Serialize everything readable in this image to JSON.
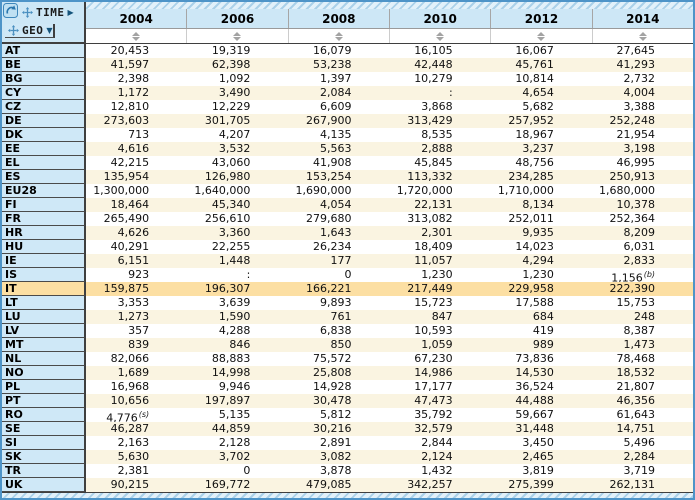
{
  "corner": {
    "time_label": "TIME",
    "geo_label": "GEO"
  },
  "icons": {
    "time_arrow": "▶",
    "geo_arrow": "▼"
  },
  "columns": [
    "2004",
    "2006",
    "2008",
    "2010",
    "2012",
    "2014"
  ],
  "rows": [
    {
      "geo": "AT",
      "values": [
        "20,453",
        "19,319",
        "16,079",
        "16,105",
        "16,067",
        "27,645"
      ]
    },
    {
      "geo": "BE",
      "values": [
        "41,597",
        "62,398",
        "53,238",
        "42,448",
        "45,761",
        "41,293"
      ]
    },
    {
      "geo": "BG",
      "values": [
        "2,398",
        "1,092",
        "1,397",
        "10,279",
        "10,814",
        "2,732"
      ]
    },
    {
      "geo": "CY",
      "values": [
        "1,172",
        "3,490",
        "2,084",
        ":",
        "4,654",
        "4,004"
      ]
    },
    {
      "geo": "CZ",
      "values": [
        "12,810",
        "12,229",
        "6,609",
        "3,868",
        "5,682",
        "3,388"
      ]
    },
    {
      "geo": "DE",
      "values": [
        "273,603",
        "301,705",
        "267,900",
        "313,429",
        "257,952",
        "252,248"
      ]
    },
    {
      "geo": "DK",
      "values": [
        "713",
        "4,207",
        "4,135",
        "8,535",
        "18,967",
        "21,954"
      ]
    },
    {
      "geo": "EE",
      "values": [
        "4,616",
        "3,532",
        "5,563",
        "2,888",
        "3,237",
        "3,198"
      ]
    },
    {
      "geo": "EL",
      "values": [
        "42,215",
        "43,060",
        "41,908",
        "45,845",
        "48,756",
        "46,995"
      ]
    },
    {
      "geo": "ES",
      "values": [
        "135,954",
        "126,980",
        "153,254",
        "113,332",
        "234,285",
        "250,913"
      ]
    },
    {
      "geo": "EU28",
      "values": [
        "1,300,000",
        "1,640,000",
        "1,690,000",
        "1,720,000",
        "1,710,000",
        "1,680,000"
      ]
    },
    {
      "geo": "FI",
      "values": [
        "18,464",
        "45,340",
        "4,054",
        "22,131",
        "8,134",
        "10,378"
      ]
    },
    {
      "geo": "FR",
      "values": [
        "265,490",
        "256,610",
        "279,680",
        "313,082",
        "252,011",
        "252,364"
      ]
    },
    {
      "geo": "HR",
      "values": [
        "4,626",
        "3,360",
        "1,643",
        "2,301",
        "9,935",
        "8,209"
      ]
    },
    {
      "geo": "HU",
      "values": [
        "40,291",
        "22,255",
        "26,234",
        "18,409",
        "14,023",
        "6,031"
      ]
    },
    {
      "geo": "IE",
      "values": [
        "6,151",
        "1,448",
        "177",
        "11,057",
        "4,294",
        "2,833"
      ]
    },
    {
      "geo": "IS",
      "values": [
        "923",
        ":",
        "0",
        "1,230",
        "1,230",
        "1,156"
      ],
      "sup": {
        "5": "(b)"
      }
    },
    {
      "geo": "IT",
      "values": [
        "159,875",
        "196,307",
        "166,221",
        "217,449",
        "229,958",
        "222,390"
      ],
      "highlight": true
    },
    {
      "geo": "LT",
      "values": [
        "3,353",
        "3,639",
        "9,893",
        "15,723",
        "17,588",
        "15,753"
      ]
    },
    {
      "geo": "LU",
      "values": [
        "1,273",
        "1,590",
        "761",
        "847",
        "684",
        "248"
      ]
    },
    {
      "geo": "LV",
      "values": [
        "357",
        "4,288",
        "6,838",
        "10,593",
        "419",
        "8,387"
      ]
    },
    {
      "geo": "MT",
      "values": [
        "839",
        "846",
        "850",
        "1,059",
        "989",
        "1,473"
      ]
    },
    {
      "geo": "NL",
      "values": [
        "82,066",
        "88,883",
        "75,572",
        "67,230",
        "73,836",
        "78,468"
      ]
    },
    {
      "geo": "NO",
      "values": [
        "1,689",
        "14,998",
        "25,808",
        "14,986",
        "14,530",
        "18,532"
      ]
    },
    {
      "geo": "PL",
      "values": [
        "16,968",
        "9,946",
        "14,928",
        "17,177",
        "36,524",
        "21,807"
      ]
    },
    {
      "geo": "PT",
      "values": [
        "10,656",
        "197,897",
        "30,478",
        "47,473",
        "44,488",
        "46,356"
      ]
    },
    {
      "geo": "RO",
      "values": [
        "4,776",
        "5,135",
        "5,812",
        "35,792",
        "59,667",
        "61,643"
      ],
      "sup": {
        "0": "(s)"
      }
    },
    {
      "geo": "SE",
      "values": [
        "46,287",
        "44,859",
        "30,216",
        "32,579",
        "31,448",
        "14,751"
      ]
    },
    {
      "geo": "SI",
      "values": [
        "2,163",
        "2,128",
        "2,891",
        "2,844",
        "3,450",
        "5,496"
      ]
    },
    {
      "geo": "SK",
      "values": [
        "5,630",
        "3,702",
        "3,082",
        "2,124",
        "2,465",
        "2,284"
      ]
    },
    {
      "geo": "TR",
      "values": [
        "2,381",
        "0",
        "3,878",
        "1,432",
        "3,819",
        "3,719"
      ]
    },
    {
      "geo": "UK",
      "values": [
        "90,215",
        "169,772",
        "479,085",
        "342,257",
        "275,399",
        "262,131"
      ]
    }
  ],
  "colors": {
    "frame_border": "#4e94c8",
    "header_bg": "#cde7f6",
    "row_label_bg": "#cfe8f7",
    "row_alt_bg": "#faf4e1",
    "highlight_bg": "#fcdfa3"
  }
}
